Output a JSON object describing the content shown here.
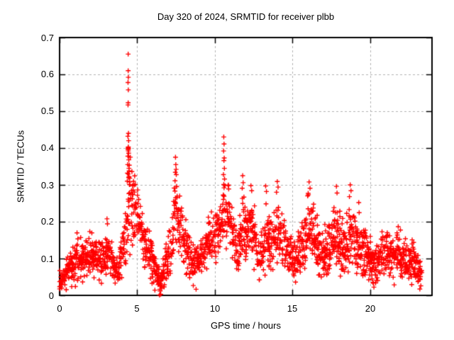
{
  "window": {
    "title": "Day 320 of 2024, SRMTID for receiver plbb",
    "background": "#ffffff"
  },
  "chart_data": {
    "type": "scatter",
    "title": "Day 320 of 2024, SRMTID for receiver plbb",
    "xlabel": "GPS time / hours",
    "ylabel": "SRMTID / TECUs",
    "xlim": [
      0,
      24
    ],
    "ylim": [
      0,
      0.7
    ],
    "xticks": [
      {
        "v": 0,
        "label": "0"
      },
      {
        "v": 5,
        "label": "5"
      },
      {
        "v": 10,
        "label": "10"
      },
      {
        "v": 15,
        "label": "15"
      },
      {
        "v": 20,
        "label": "20"
      }
    ],
    "yticks": [
      {
        "v": 0,
        "label": "0"
      },
      {
        "v": 0.1,
        "label": "0.1"
      },
      {
        "v": 0.2,
        "label": "0.2"
      },
      {
        "v": 0.3,
        "label": "0.3"
      },
      {
        "v": 0.4,
        "label": "0.4"
      },
      {
        "v": 0.5,
        "label": "0.5"
      },
      {
        "v": 0.6,
        "label": "0.6"
      },
      {
        "v": 0.7,
        "label": "0.7"
      }
    ],
    "grid": {
      "show": true,
      "color": "#b0b0b0",
      "dash": [
        3,
        3
      ]
    },
    "axis_color": "#000000",
    "marker": {
      "shape": "plus",
      "color": "#ff0000",
      "size": 7,
      "stroke": 1.4
    },
    "series_name": "SRMTID",
    "sampling": {
      "t_start": 0.0,
      "t_end": 23.35,
      "t_step": 0.02,
      "seed": 1320
    },
    "envelope": [
      [
        0.0,
        0.045,
        0.025
      ],
      [
        0.4,
        0.055,
        0.028
      ],
      [
        0.8,
        0.08,
        0.04
      ],
      [
        1.1,
        0.1,
        0.048
      ],
      [
        1.5,
        0.085,
        0.04
      ],
      [
        2.1,
        0.11,
        0.05
      ],
      [
        2.55,
        0.095,
        0.042
      ],
      [
        3.1,
        0.12,
        0.055
      ],
      [
        3.65,
        0.065,
        0.035
      ],
      [
        4.0,
        0.1,
        0.05
      ],
      [
        4.3,
        0.19,
        0.08
      ],
      [
        4.5,
        0.27,
        0.09
      ],
      [
        4.75,
        0.235,
        0.07
      ],
      [
        5.1,
        0.21,
        0.055
      ],
      [
        5.5,
        0.15,
        0.05
      ],
      [
        5.95,
        0.09,
        0.042
      ],
      [
        6.45,
        0.038,
        0.028
      ],
      [
        6.8,
        0.07,
        0.038
      ],
      [
        7.2,
        0.14,
        0.06
      ],
      [
        7.5,
        0.235,
        0.075
      ],
      [
        7.85,
        0.185,
        0.06
      ],
      [
        8.2,
        0.13,
        0.055
      ],
      [
        8.6,
        0.08,
        0.04
      ],
      [
        9.0,
        0.09,
        0.042
      ],
      [
        9.6,
        0.15,
        0.052
      ],
      [
        10.0,
        0.155,
        0.055
      ],
      [
        10.3,
        0.19,
        0.06
      ],
      [
        10.6,
        0.245,
        0.075
      ],
      [
        10.9,
        0.21,
        0.06
      ],
      [
        11.2,
        0.16,
        0.055
      ],
      [
        11.45,
        0.1,
        0.042
      ],
      [
        11.8,
        0.2,
        0.068
      ],
      [
        12.1,
        0.17,
        0.06
      ],
      [
        12.35,
        0.205,
        0.062
      ],
      [
        12.9,
        0.085,
        0.042
      ],
      [
        13.3,
        0.165,
        0.062
      ],
      [
        13.7,
        0.15,
        0.058
      ],
      [
        14.05,
        0.19,
        0.068
      ],
      [
        14.4,
        0.155,
        0.055
      ],
      [
        14.8,
        0.12,
        0.05
      ],
      [
        15.15,
        0.085,
        0.045
      ],
      [
        15.6,
        0.14,
        0.06
      ],
      [
        16.1,
        0.185,
        0.072
      ],
      [
        16.5,
        0.15,
        0.058
      ],
      [
        17.0,
        0.105,
        0.05
      ],
      [
        17.55,
        0.15,
        0.06
      ],
      [
        17.9,
        0.16,
        0.062
      ],
      [
        18.3,
        0.12,
        0.05
      ],
      [
        18.75,
        0.16,
        0.068
      ],
      [
        19.1,
        0.145,
        0.055
      ],
      [
        19.5,
        0.12,
        0.05
      ],
      [
        20.0,
        0.1,
        0.045
      ],
      [
        20.3,
        0.08,
        0.04
      ],
      [
        20.7,
        0.105,
        0.045
      ],
      [
        21.1,
        0.115,
        0.05
      ],
      [
        21.5,
        0.1,
        0.045
      ],
      [
        21.9,
        0.115,
        0.05
      ],
      [
        22.35,
        0.085,
        0.04
      ],
      [
        22.8,
        0.1,
        0.045
      ],
      [
        23.15,
        0.065,
        0.032
      ],
      [
        23.35,
        0.055,
        0.028
      ]
    ],
    "peak_points": [
      [
        4.42,
        0.655
      ],
      [
        4.42,
        0.61
      ],
      [
        4.43,
        0.592
      ],
      [
        4.41,
        0.578
      ],
      [
        4.43,
        0.558
      ],
      [
        4.42,
        0.523
      ],
      [
        4.41,
        0.517
      ],
      [
        4.44,
        0.44
      ],
      [
        4.4,
        0.432
      ],
      [
        4.45,
        0.42
      ],
      [
        4.43,
        0.403
      ],
      [
        4.42,
        0.4
      ],
      [
        4.44,
        0.398
      ],
      [
        4.41,
        0.396
      ],
      [
        4.43,
        0.392
      ],
      [
        4.45,
        0.386
      ],
      [
        4.4,
        0.378
      ],
      [
        4.46,
        0.368
      ],
      [
        4.39,
        0.355
      ],
      [
        4.47,
        0.345
      ],
      [
        4.37,
        0.332
      ],
      [
        4.48,
        0.322
      ],
      [
        4.36,
        0.31
      ],
      [
        4.5,
        0.301
      ],
      [
        6.44,
        0.001
      ],
      [
        6.52,
        0.003
      ],
      [
        6.48,
        0.012
      ],
      [
        7.47,
        0.375
      ],
      [
        7.49,
        0.355
      ],
      [
        7.51,
        0.342
      ],
      [
        7.46,
        0.334
      ],
      [
        7.52,
        0.328
      ],
      [
        7.44,
        0.311
      ],
      [
        7.54,
        0.296
      ],
      [
        10.58,
        0.43
      ],
      [
        10.6,
        0.411
      ],
      [
        10.57,
        0.392
      ],
      [
        10.61,
        0.373
      ],
      [
        10.59,
        0.366
      ],
      [
        10.62,
        0.345
      ],
      [
        10.56,
        0.328
      ],
      [
        10.63,
        0.316
      ],
      [
        10.58,
        0.301
      ],
      [
        11.8,
        0.325
      ],
      [
        11.83,
        0.306
      ],
      [
        11.77,
        0.291
      ],
      [
        12.33,
        0.298
      ],
      [
        12.38,
        0.284
      ],
      [
        13.28,
        0.297
      ],
      [
        13.33,
        0.282
      ],
      [
        14.03,
        0.309
      ],
      [
        14.08,
        0.294
      ],
      [
        13.98,
        0.28
      ],
      [
        16.08,
        0.308
      ],
      [
        16.14,
        0.291
      ],
      [
        16.02,
        0.277
      ],
      [
        17.84,
        0.296
      ],
      [
        17.88,
        0.278
      ],
      [
        18.73,
        0.3
      ],
      [
        18.78,
        0.284
      ],
      [
        18.68,
        0.268
      ],
      [
        19.28,
        0.252
      ]
    ]
  }
}
